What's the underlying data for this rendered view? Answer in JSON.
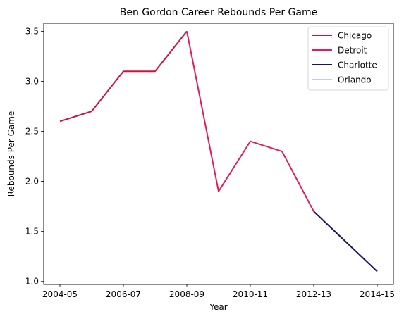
{
  "chart_data": {
    "type": "line",
    "title": "Ben Gordon Career Rebounds Per Game",
    "xlabel": "Year",
    "ylabel": "Rebounds Per Game",
    "x": [
      "2004-05",
      "2005-06",
      "2006-07",
      "2007-08",
      "2008-09",
      "2009-10",
      "2010-11",
      "2011-12",
      "2012-13",
      "2013-14",
      "2014-15"
    ],
    "xticks": [
      "2004-05",
      "2006-07",
      "2008-09",
      "2010-11",
      "2012-13",
      "2014-15"
    ],
    "ylim": [
      0.97,
      3.58
    ],
    "yticks": [
      "1.0",
      "1.5",
      "2.0",
      "2.5",
      "3.0",
      "3.5"
    ],
    "grid": false,
    "legend_position": "top-right",
    "series": [
      {
        "name": "Chicago",
        "color": "#CE1141",
        "x": [
          "2004-05",
          "2005-06",
          "2006-07",
          "2007-08",
          "2008-09"
        ],
        "values": [
          2.6,
          2.7,
          3.1,
          3.1,
          3.5
        ]
      },
      {
        "name": "Detroit",
        "color": "#E01E5A",
        "x": [
          "2008-09",
          "2009-10",
          "2010-11",
          "2011-12",
          "2012-13"
        ],
        "values": [
          3.5,
          1.9,
          2.4,
          2.3,
          1.7
        ]
      },
      {
        "name": "Charlotte",
        "color": "#1D1160",
        "x": [
          "2012-13",
          "2013-14",
          "2014-15"
        ],
        "values": [
          1.7,
          1.4,
          1.1
        ]
      },
      {
        "name": "Orlando",
        "color": "#C4CED4",
        "x": [],
        "values": []
      }
    ]
  }
}
